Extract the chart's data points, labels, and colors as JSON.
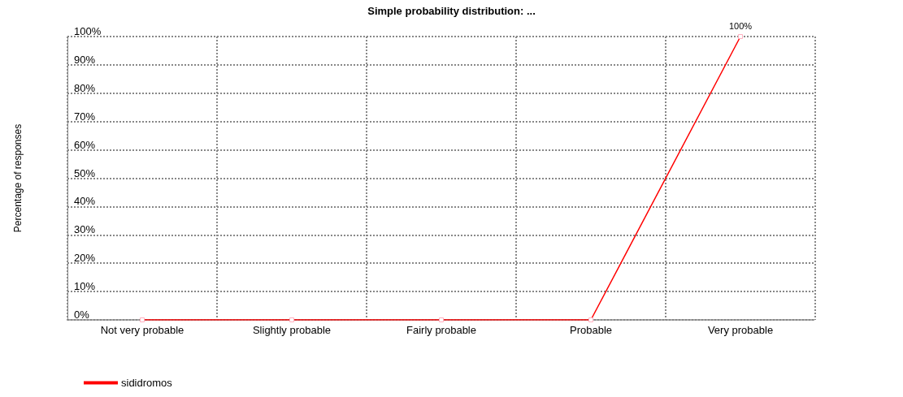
{
  "chart_data": {
    "type": "line",
    "title": "Simple probability distribution: ...",
    "ylabel": "Percentage of responses",
    "categories": [
      "Not very probable",
      "Slightly probable",
      "Fairly probable",
      "Probable",
      "Very probable"
    ],
    "series": [
      {
        "name": "sididromos",
        "color": "#ff0000",
        "values": [
          0,
          0,
          0,
          0,
          100
        ],
        "value_labels": [
          null,
          null,
          null,
          null,
          "100%"
        ]
      }
    ],
    "ylim": [
      0,
      100
    ],
    "yticks": [
      {
        "value": 0,
        "label": "0%"
      },
      {
        "value": 10,
        "label": "10%"
      },
      {
        "value": 20,
        "label": "20%"
      },
      {
        "value": 30,
        "label": "30%"
      },
      {
        "value": 40,
        "label": "40%"
      },
      {
        "value": 50,
        "label": "50%"
      },
      {
        "value": 60,
        "label": "60%"
      },
      {
        "value": 70,
        "label": "70%"
      },
      {
        "value": 80,
        "label": "80%"
      },
      {
        "value": 90,
        "label": "90%"
      },
      {
        "value": 100,
        "label": "100%"
      }
    ],
    "grid": true,
    "legend": "bottom left",
    "marker": "square",
    "line_style": "solid"
  }
}
